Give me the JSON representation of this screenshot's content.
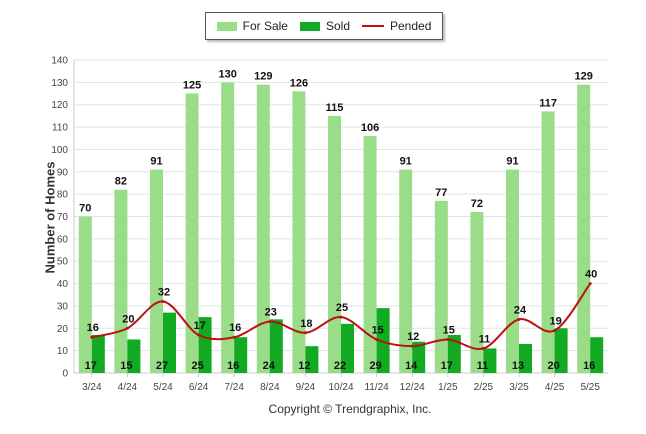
{
  "chart_data": {
    "type": "bar",
    "categories": [
      "3/24",
      "4/24",
      "5/24",
      "6/24",
      "7/24",
      "8/24",
      "9/24",
      "10/24",
      "11/24",
      "12/24",
      "1/25",
      "2/25",
      "3/25",
      "4/25",
      "5/25"
    ],
    "series": [
      {
        "name": "For Sale",
        "type": "bar",
        "color": "#99dd88",
        "values": [
          70,
          82,
          91,
          125,
          130,
          129,
          126,
          115,
          106,
          91,
          77,
          72,
          91,
          117,
          129
        ]
      },
      {
        "name": "Sold",
        "type": "bar",
        "color": "#11aa22",
        "values": [
          17,
          15,
          27,
          25,
          16,
          24,
          12,
          22,
          29,
          14,
          17,
          11,
          13,
          20,
          16
        ]
      },
      {
        "name": "Pended",
        "type": "line",
        "color": "#bb1111",
        "values": [
          16,
          20,
          32,
          17,
          16,
          23,
          18,
          25,
          15,
          12,
          15,
          11,
          24,
          19,
          40
        ]
      }
    ],
    "ylabel": "Number of Homes",
    "ylim": [
      0,
      140
    ],
    "yticks": [
      0,
      10,
      20,
      30,
      40,
      50,
      60,
      70,
      80,
      90,
      100,
      110,
      120,
      130,
      140
    ],
    "grid": true,
    "legend_position": "top-center"
  },
  "copyright": "Copyright © Trendgraphix, Inc."
}
